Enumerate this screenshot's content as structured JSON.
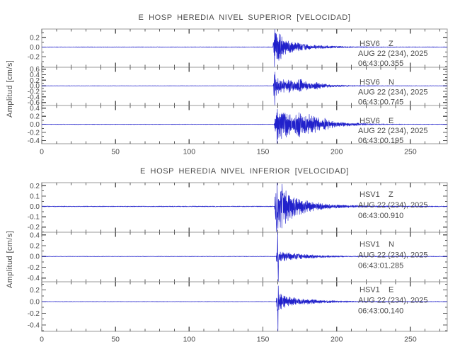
{
  "figure": {
    "background_color": "#ffffff",
    "trace_color": "#2121cb",
    "axis_color": "#9a9a9a",
    "tick_color": "#5a5a5a",
    "text_color": "#4a4a4a"
  },
  "chart_data": [
    {
      "type": "line",
      "title": "E HOSP HEREDIA NIVEL SUPERIOR [VELOCIDAD]",
      "ylabel": "Amplitud [cm/s]",
      "xlim": [
        0,
        275
      ],
      "x_major_ticks": [
        0,
        50,
        100,
        150,
        200,
        250
      ],
      "x_tick_labels": [
        "0",
        "50",
        "100",
        "150",
        "200",
        "250"
      ],
      "x_minor_step": 10,
      "grid": false,
      "legend_position": "none",
      "traces": [
        {
          "station": "HSV6",
          "component": "Z",
          "date_label": "AUG 22 (234), 2025",
          "time_label": "06:43:00.355",
          "ylim": [
            -0.42,
            0.375
          ],
          "yticks": [
            0.2,
            0.0,
            -0.2
          ],
          "ytick_labels": [
            "0.2",
            "0.0",
            "-0.2"
          ],
          "y_minor_step": 0.1,
          "onset_time_s": 157.5,
          "noise_floor": 0.006,
          "envelope": [
            [
              0,
              0.006
            ],
            [
              156.8,
              0.006
            ],
            [
              157.3,
              0.36
            ],
            [
              158.5,
              0.34
            ],
            [
              160,
              0.3
            ],
            [
              162,
              0.26
            ],
            [
              164,
              0.17
            ],
            [
              167,
              0.13
            ],
            [
              170,
              0.11
            ],
            [
              174,
              0.09
            ],
            [
              178,
              0.07
            ],
            [
              183,
              0.05
            ],
            [
              188,
              0.038
            ],
            [
              194,
              0.028
            ],
            [
              200,
              0.02
            ],
            [
              208,
              0.014
            ],
            [
              218,
              0.01
            ],
            [
              230,
              0.008
            ],
            [
              275,
              0.006
            ]
          ],
          "spikes": [
            [
              157.8,
              -0.42
            ],
            [
              158.1,
              0.37
            ]
          ]
        },
        {
          "station": "HSV6",
          "component": "N",
          "date_label": "AUG 22 (234), 2025",
          "time_label": "06:43:00.745",
          "ylim": [
            -0.71,
            0.67
          ],
          "yticks": [
            0.6,
            0.4,
            0.2,
            0.0,
            -0.2,
            -0.4,
            -0.6
          ],
          "ytick_labels": [
            "0.6",
            "0.4",
            "0.2",
            "0.0",
            "-0.2",
            "-0.4",
            "-0.6"
          ],
          "y_minor_step": 0.1,
          "onset_time_s": 157.5,
          "noise_floor": 0.006,
          "envelope": [
            [
              0,
              0.006
            ],
            [
              157,
              0.006
            ],
            [
              157.5,
              0.45
            ],
            [
              159,
              0.38
            ],
            [
              161,
              0.3
            ],
            [
              163.5,
              0.26
            ],
            [
              166,
              0.18
            ],
            [
              168,
              0.26
            ],
            [
              170.5,
              0.2
            ],
            [
              173,
              0.28
            ],
            [
              175.5,
              0.26
            ],
            [
              178,
              0.2
            ],
            [
              181,
              0.13
            ],
            [
              184,
              0.1
            ],
            [
              186.5,
              0.13
            ],
            [
              190,
              0.08
            ],
            [
              194,
              0.055
            ],
            [
              199,
              0.04
            ],
            [
              205,
              0.028
            ],
            [
              212,
              0.018
            ],
            [
              222,
              0.012
            ],
            [
              235,
              0.008
            ],
            [
              275,
              0.006
            ]
          ],
          "spikes": [
            [
              157.9,
              -0.7
            ],
            [
              158.2,
              0.5
            ]
          ]
        },
        {
          "station": "HSV6",
          "component": "E",
          "date_label": "AUG 22 (234), 2025",
          "time_label": "06:43:00.195",
          "ylim": [
            -0.48,
            0.465
          ],
          "yticks": [
            0.4,
            0.2,
            0.0,
            -0.2,
            -0.4
          ],
          "ytick_labels": [
            "0.4",
            "0.2",
            "0.0",
            "-0.2",
            "-0.4"
          ],
          "y_minor_step": 0.1,
          "onset_time_s": 158.0,
          "noise_floor": 0.006,
          "envelope": [
            [
              0,
              0.006
            ],
            [
              157.5,
              0.006
            ],
            [
              158.5,
              0.28
            ],
            [
              160,
              0.4
            ],
            [
              162,
              0.34
            ],
            [
              164,
              0.41
            ],
            [
              166.5,
              0.3
            ],
            [
              169,
              0.24
            ],
            [
              171.5,
              0.29
            ],
            [
              174,
              0.34
            ],
            [
              176.5,
              0.3
            ],
            [
              179,
              0.22
            ],
            [
              181.5,
              0.27
            ],
            [
              184,
              0.24
            ],
            [
              187,
              0.17
            ],
            [
              190,
              0.13
            ],
            [
              192.5,
              0.16
            ],
            [
              195.5,
              0.11
            ],
            [
              199,
              0.08
            ],
            [
              203,
              0.06
            ],
            [
              208,
              0.045
            ],
            [
              213,
              0.035
            ],
            [
              219,
              0.025
            ],
            [
              226,
              0.016
            ],
            [
              235,
              0.01
            ],
            [
              248,
              0.007
            ],
            [
              275,
              0.006
            ]
          ],
          "spikes": [
            [
              159.5,
              -0.47
            ]
          ]
        }
      ]
    },
    {
      "type": "line",
      "title": "E HOSP HEREDIA NIVEL INFERIOR [VELOCIDAD]",
      "ylabel": "Amplitud [cm/s]",
      "xlim": [
        0,
        275
      ],
      "x_major_ticks": [
        0,
        50,
        100,
        150,
        200,
        250
      ],
      "x_tick_labels": [
        "0",
        "50",
        "100",
        "150",
        "200",
        "250"
      ],
      "x_minor_step": 10,
      "grid": false,
      "legend_position": "none",
      "traces": [
        {
          "station": "HSV1",
          "component": "Z",
          "date_label": "AUG 22 (234), 2025",
          "time_label": "06:43:00.910",
          "ylim": [
            -0.25,
            0.23
          ],
          "yticks": [
            0.2,
            0.1,
            0.0,
            -0.1,
            -0.2
          ],
          "ytick_labels": [
            "0.2",
            "0.1",
            "0.0",
            "-0.1",
            "-0.2"
          ],
          "y_minor_step": 0.05,
          "onset_time_s": 158.0,
          "noise_floor": 0.004,
          "envelope": [
            [
              0,
              0.004
            ],
            [
              157.8,
              0.004
            ],
            [
              158.5,
              0.18
            ],
            [
              159.5,
              0.225
            ],
            [
              161,
              0.2
            ],
            [
              163,
              0.22
            ],
            [
              165,
              0.17
            ],
            [
              167.5,
              0.14
            ],
            [
              170,
              0.115
            ],
            [
              173,
              0.095
            ],
            [
              176,
              0.08
            ],
            [
              179,
              0.065
            ],
            [
              183,
              0.052
            ],
            [
              187,
              0.04
            ],
            [
              192,
              0.03
            ],
            [
              197,
              0.022
            ],
            [
              203,
              0.016
            ],
            [
              210,
              0.012
            ],
            [
              220,
              0.008
            ],
            [
              232,
              0.006
            ],
            [
              275,
              0.004
            ]
          ],
          "spikes": [
            [
              159.2,
              -0.25
            ],
            [
              159.6,
              0.23
            ]
          ]
        },
        {
          "station": "HSV1",
          "component": "N",
          "date_label": "AUG 22 (234), 2025",
          "time_label": "06:43:01.285",
          "ylim": [
            -0.47,
            0.45
          ],
          "yticks": [
            0.4,
            0.2,
            0.0,
            -0.2,
            -0.4
          ],
          "ytick_labels": [
            "0.4",
            "0.2",
            "0.0",
            "-0.2",
            "-0.4"
          ],
          "y_minor_step": 0.1,
          "onset_time_s": 159.5,
          "noise_floor": 0.004,
          "envelope": [
            [
              0,
              0.004
            ],
            [
              158.8,
              0.004
            ],
            [
              159.8,
              0.22
            ],
            [
              160.8,
              0.12
            ],
            [
              162.5,
              0.1
            ],
            [
              165,
              0.085
            ],
            [
              168,
              0.07
            ],
            [
              171,
              0.058
            ],
            [
              175,
              0.048
            ],
            [
              179,
              0.04
            ],
            [
              184,
              0.032
            ],
            [
              189,
              0.024
            ],
            [
              195,
              0.017
            ],
            [
              202,
              0.012
            ],
            [
              210,
              0.009
            ],
            [
              222,
              0.007
            ],
            [
              275,
              0.005
            ]
          ],
          "spikes": [
            [
              160.1,
              0.45
            ],
            [
              160.35,
              -0.47
            ]
          ]
        },
        {
          "station": "HSV1",
          "component": "E",
          "date_label": "AUG 22 (234), 2025",
          "time_label": "06:43:00.140",
          "ylim": [
            -0.51,
            0.34
          ],
          "yticks": [
            0.2,
            0.0,
            -0.2,
            -0.4
          ],
          "ytick_labels": [
            "0.2",
            "0.0",
            "-0.2",
            "-0.4"
          ],
          "y_minor_step": 0.1,
          "onset_time_s": 159.5,
          "noise_floor": 0.004,
          "envelope": [
            [
              0,
              0.004
            ],
            [
              158.8,
              0.004
            ],
            [
              159.8,
              0.19
            ],
            [
              161,
              0.15
            ],
            [
              163,
              0.125
            ],
            [
              165.5,
              0.1
            ],
            [
              168,
              0.085
            ],
            [
              171,
              0.07
            ],
            [
              174.5,
              0.058
            ],
            [
              178,
              0.048
            ],
            [
              182,
              0.04
            ],
            [
              187,
              0.032
            ],
            [
              192,
              0.025
            ],
            [
              198,
              0.018
            ],
            [
              205,
              0.013
            ],
            [
              213,
              0.009
            ],
            [
              225,
              0.007
            ],
            [
              240,
              0.006
            ],
            [
              275,
              0.005
            ]
          ],
          "spikes": [
            [
              160.2,
              -0.51
            ],
            [
              160.45,
              0.27
            ]
          ]
        }
      ]
    }
  ]
}
